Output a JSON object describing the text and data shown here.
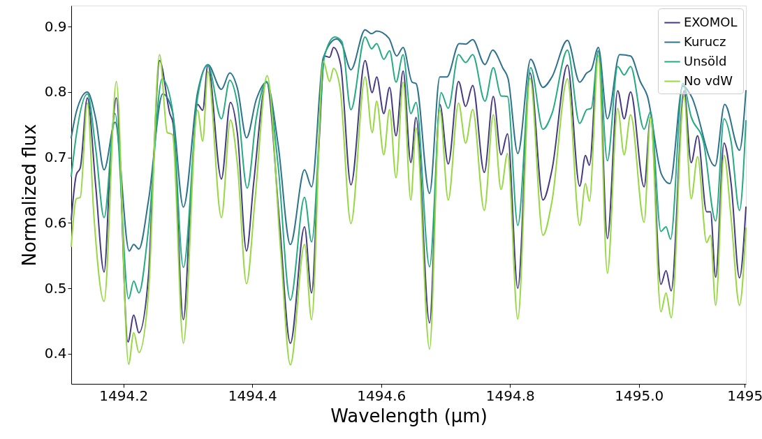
{
  "chart_data": {
    "type": "line",
    "xlabel": "Wavelength (μm)",
    "ylabel": "Normalized flux",
    "xlim": [
      1494.119,
      1495.166
    ],
    "ylim": [
      0.354,
      0.932
    ],
    "xticks": [
      1494.2,
      1494.4,
      1494.6,
      1494.8,
      {
        "value": 1495.0,
        "label": "1495.0"
      },
      {
        "value": 1495.164,
        "label": "1495"
      }
    ],
    "yticks": [
      0.4,
      0.5,
      0.6,
      0.7,
      0.8,
      0.9
    ],
    "grid": false,
    "legend": "top right",
    "line_style": "solid",
    "marker": "none",
    "series": [
      {
        "name": "EXOMOL",
        "color": "#443983",
        "x": [
          1494.119,
          1494.127,
          1494.133,
          1494.144,
          1494.157,
          1494.17,
          1494.18,
          1494.189,
          1494.207,
          1494.216,
          1494.224,
          1494.239,
          1494.247,
          1494.256,
          1494.272,
          1494.277,
          1494.293,
          1494.304,
          1494.315,
          1494.323,
          1494.331,
          1494.352,
          1494.366,
          1494.377,
          1494.391,
          1494.402,
          1494.422,
          1494.442,
          1494.459,
          1494.481,
          1494.492,
          1494.504,
          1494.512,
          1494.52,
          1494.526,
          1494.537,
          1494.553,
          1494.575,
          1494.586,
          1494.593,
          1494.604,
          1494.613,
          1494.623,
          1494.634,
          1494.646,
          1494.654,
          1494.675,
          1494.691,
          1494.704,
          1494.72,
          1494.731,
          1494.742,
          1494.76,
          1494.774,
          1494.786,
          1494.796,
          1494.812,
          1494.831,
          1494.851,
          1494.865,
          1494.889,
          1494.908,
          1494.917,
          1494.923,
          1494.937,
          1494.951,
          1494.967,
          1494.977,
          1494.987,
          1495.008,
          1495.018,
          1495.034,
          1495.042,
          1495.05,
          1495.07,
          1495.081,
          1495.091,
          1495.105,
          1495.111,
          1495.119,
          1495.132,
          1495.143,
          1495.156,
          1495.166
        ],
        "values": [
          0.605,
          0.674,
          0.684,
          0.791,
          0.656,
          0.525,
          0.699,
          0.791,
          0.418,
          0.459,
          0.432,
          0.521,
          0.699,
          0.848,
          0.767,
          0.752,
          0.452,
          0.628,
          0.781,
          0.772,
          0.841,
          0.667,
          0.784,
          0.735,
          0.557,
          0.66,
          0.816,
          0.603,
          0.416,
          0.594,
          0.493,
          0.73,
          0.855,
          0.853,
          0.868,
          0.842,
          0.658,
          0.848,
          0.799,
          0.823,
          0.767,
          0.807,
          0.733,
          0.832,
          0.692,
          0.761,
          0.447,
          0.781,
          0.69,
          0.816,
          0.778,
          0.81,
          0.677,
          0.793,
          0.704,
          0.736,
          0.5,
          0.829,
          0.635,
          0.681,
          0.841,
          0.656,
          0.703,
          0.688,
          0.863,
          0.576,
          0.802,
          0.759,
          0.8,
          0.655,
          0.762,
          0.506,
          0.527,
          0.496,
          0.802,
          0.692,
          0.733,
          0.617,
          0.617,
          0.517,
          0.722,
          0.66,
          0.516,
          0.624
        ]
      },
      {
        "name": "Kurucz",
        "color": "#2c728e",
        "x": [
          1494.119,
          1494.127,
          1494.144,
          1494.157,
          1494.17,
          1494.187,
          1494.209,
          1494.216,
          1494.224,
          1494.239,
          1494.261,
          1494.276,
          1494.293,
          1494.315,
          1494.331,
          1494.352,
          1494.365,
          1494.377,
          1494.391,
          1494.406,
          1494.422,
          1494.44,
          1494.459,
          1494.481,
          1494.492,
          1494.51,
          1494.531,
          1494.539,
          1494.553,
          1494.575,
          1494.585,
          1494.593,
          1494.612,
          1494.624,
          1494.634,
          1494.648,
          1494.654,
          1494.675,
          1494.691,
          1494.702,
          1494.721,
          1494.731,
          1494.742,
          1494.761,
          1494.773,
          1494.789,
          1494.797,
          1494.812,
          1494.832,
          1494.851,
          1494.865,
          1494.889,
          1494.908,
          1494.919,
          1494.926,
          1494.937,
          1494.951,
          1494.97,
          1494.987,
          1495.002,
          1495.013,
          1495.035,
          1495.048,
          1495.068,
          1495.081,
          1495.118,
          1495.133,
          1495.156,
          1495.166
        ],
        "values": [
          0.73,
          0.77,
          0.8,
          0.759,
          0.681,
          0.754,
          0.557,
          0.567,
          0.56,
          0.635,
          0.797,
          0.77,
          0.624,
          0.799,
          0.842,
          0.804,
          0.829,
          0.805,
          0.73,
          0.788,
          0.815,
          0.72,
          0.567,
          0.681,
          0.655,
          0.852,
          0.881,
          0.873,
          0.834,
          0.895,
          0.889,
          0.893,
          0.882,
          0.855,
          0.868,
          0.815,
          0.813,
          0.645,
          0.823,
          0.823,
          0.874,
          0.873,
          0.88,
          0.842,
          0.864,
          0.836,
          0.82,
          0.706,
          0.85,
          0.807,
          0.823,
          0.879,
          0.815,
          0.829,
          0.834,
          0.868,
          0.759,
          0.857,
          0.855,
          0.816,
          0.794,
          0.674,
          0.66,
          0.809,
          0.794,
          0.687,
          0.781,
          0.711,
          0.802
        ]
      },
      {
        "name": "Unsöld",
        "color": "#25ab82",
        "x": [
          1494.119,
          1494.127,
          1494.144,
          1494.157,
          1494.17,
          1494.187,
          1494.208,
          1494.216,
          1494.224,
          1494.239,
          1494.26,
          1494.276,
          1494.293,
          1494.315,
          1494.331,
          1494.352,
          1494.365,
          1494.377,
          1494.392,
          1494.406,
          1494.422,
          1494.44,
          1494.459,
          1494.481,
          1494.492,
          1494.512,
          1494.528,
          1494.539,
          1494.553,
          1494.575,
          1494.585,
          1494.593,
          1494.604,
          1494.613,
          1494.623,
          1494.634,
          1494.646,
          1494.654,
          1494.675,
          1494.693,
          1494.704,
          1494.72,
          1494.731,
          1494.742,
          1494.761,
          1494.774,
          1494.786,
          1494.796,
          1494.812,
          1494.832,
          1494.851,
          1494.865,
          1494.889,
          1494.908,
          1494.919,
          1494.926,
          1494.937,
          1494.951,
          1494.967,
          1494.977,
          1494.987,
          1495.008,
          1495.018,
          1495.034,
          1495.042,
          1495.049,
          1495.068,
          1495.081,
          1495.1,
          1495.119,
          1495.132,
          1495.143,
          1495.156,
          1495.166
        ],
        "values": [
          0.671,
          0.735,
          0.797,
          0.713,
          0.608,
          0.767,
          0.484,
          0.511,
          0.493,
          0.592,
          0.82,
          0.773,
          0.532,
          0.791,
          0.841,
          0.759,
          0.818,
          0.781,
          0.653,
          0.759,
          0.816,
          0.688,
          0.482,
          0.639,
          0.571,
          0.855,
          0.884,
          0.877,
          0.773,
          0.884,
          0.866,
          0.874,
          0.85,
          0.863,
          0.815,
          0.857,
          0.767,
          0.784,
          0.533,
          0.799,
          0.775,
          0.857,
          0.845,
          0.857,
          0.786,
          0.837,
          0.794,
          0.793,
          0.596,
          0.837,
          0.743,
          0.767,
          0.864,
          0.752,
          0.773,
          0.775,
          0.863,
          0.695,
          0.839,
          0.826,
          0.839,
          0.743,
          0.77,
          0.587,
          0.594,
          0.575,
          0.813,
          0.762,
          0.724,
          0.603,
          0.759,
          0.724,
          0.619,
          0.756
        ]
      },
      {
        "name": "No vdW",
        "color": "#95d840",
        "x": [
          1494.119,
          1494.127,
          1494.133,
          1494.144,
          1494.154,
          1494.17,
          1494.189,
          1494.208,
          1494.216,
          1494.224,
          1494.239,
          1494.256,
          1494.268,
          1494.276,
          1494.293,
          1494.315,
          1494.323,
          1494.331,
          1494.352,
          1494.366,
          1494.377,
          1494.391,
          1494.404,
          1494.423,
          1494.444,
          1494.459,
          1494.481,
          1494.492,
          1494.51,
          1494.52,
          1494.526,
          1494.536,
          1494.553,
          1494.575,
          1494.586,
          1494.593,
          1494.604,
          1494.613,
          1494.623,
          1494.634,
          1494.646,
          1494.654,
          1494.675,
          1494.691,
          1494.704,
          1494.72,
          1494.731,
          1494.742,
          1494.76,
          1494.774,
          1494.786,
          1494.796,
          1494.812,
          1494.831,
          1494.851,
          1494.865,
          1494.889,
          1494.908,
          1494.917,
          1494.923,
          1494.937,
          1494.951,
          1494.967,
          1494.977,
          1494.987,
          1495.008,
          1495.018,
          1495.034,
          1495.042,
          1495.05,
          1495.07,
          1495.081,
          1495.091,
          1495.105,
          1495.111,
          1495.119,
          1495.132,
          1495.143,
          1495.156,
          1495.166
        ],
        "values": [
          0.564,
          0.637,
          0.639,
          0.783,
          0.613,
          0.48,
          0.816,
          0.384,
          0.432,
          0.402,
          0.496,
          0.857,
          0.738,
          0.735,
          0.416,
          0.772,
          0.725,
          0.831,
          0.608,
          0.757,
          0.688,
          0.507,
          0.633,
          0.825,
          0.557,
          0.383,
          0.567,
          0.452,
          0.847,
          0.816,
          0.836,
          0.807,
          0.599,
          0.823,
          0.738,
          0.786,
          0.704,
          0.773,
          0.669,
          0.815,
          0.635,
          0.745,
          0.407,
          0.772,
          0.635,
          0.783,
          0.722,
          0.773,
          0.619,
          0.765,
          0.651,
          0.706,
          0.453,
          0.821,
          0.581,
          0.633,
          0.82,
          0.596,
          0.66,
          0.633,
          0.855,
          0.523,
          0.775,
          0.704,
          0.765,
          0.601,
          0.762,
          0.464,
          0.493,
          0.455,
          0.794,
          0.637,
          0.701,
          0.57,
          0.581,
          0.474,
          0.703,
          0.607,
          0.474,
          0.592
        ]
      }
    ]
  }
}
